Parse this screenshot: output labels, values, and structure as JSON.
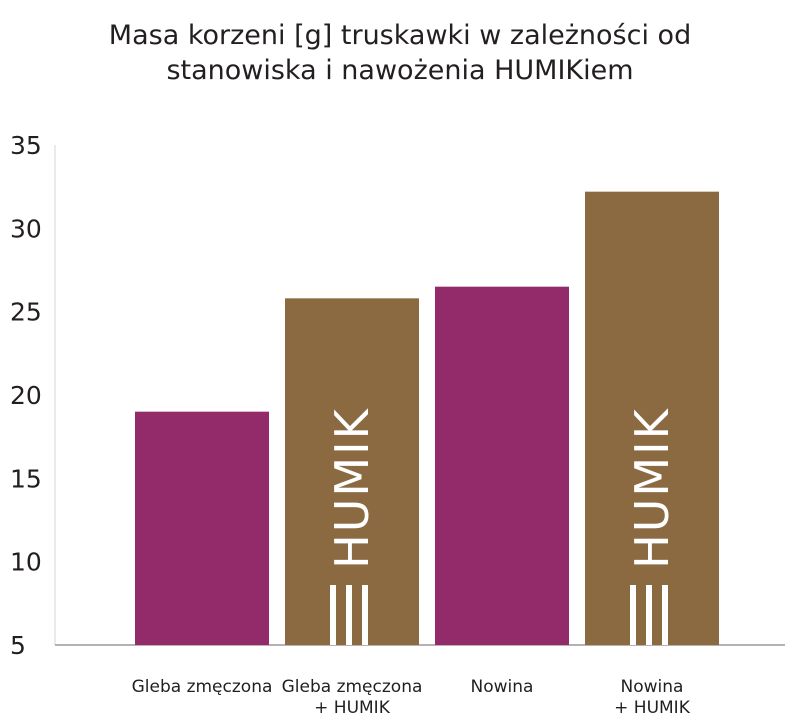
{
  "chart_data": {
    "type": "bar",
    "title_lines": [
      "Masa korzeni [g] truskawki w zależności od",
      "stanowiska i nawożenia HUMIKiem"
    ],
    "categories": [
      [
        "Gleba zmęczona"
      ],
      [
        "Gleba zmęczona",
        "+ HUMIK"
      ],
      [
        "Nowina"
      ],
      [
        "Nowina",
        "+ HUMIK"
      ]
    ],
    "values": [
      19.0,
      25.8,
      26.5,
      32.2
    ],
    "bar_colors": [
      "#932b6b",
      "#8b6a41",
      "#932b6b",
      "#8b6a41"
    ],
    "bar_logo": [
      false,
      true,
      false,
      true
    ],
    "logo_text": "HUMIK",
    "yticks": [
      5,
      10,
      15,
      20,
      25,
      30,
      35
    ],
    "ylim": [
      5,
      35
    ],
    "grid": false
  }
}
